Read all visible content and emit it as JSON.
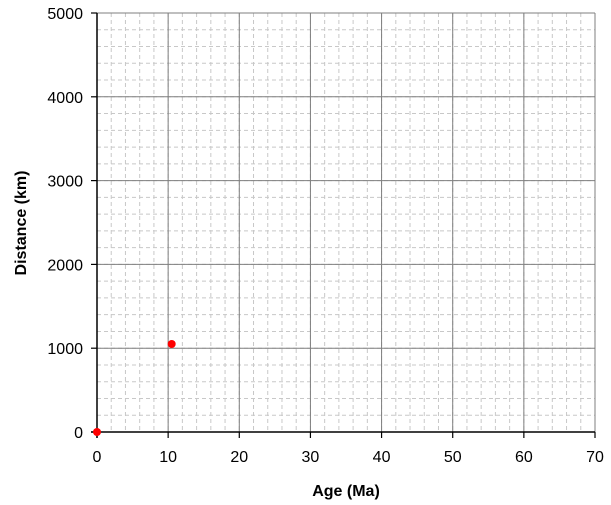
{
  "chart_data": {
    "type": "scatter",
    "xlabel": "Age (Ma)",
    "ylabel": "Distance (km)",
    "xlim": [
      0,
      70
    ],
    "ylim": [
      0,
      5000
    ],
    "x_ticks": [
      "0",
      "10",
      "20",
      "30",
      "40",
      "50",
      "60",
      "70"
    ],
    "y_ticks": [
      "0",
      "1000",
      "2000",
      "3000",
      "4000",
      "5000"
    ],
    "major_grid": true,
    "minor_grid": true,
    "legend": "none",
    "series": [
      {
        "points": [
          {
            "x": 0,
            "y": 0
          },
          {
            "x": 10.5,
            "y": 1050
          }
        ],
        "color": "#ff0000"
      }
    ]
  }
}
